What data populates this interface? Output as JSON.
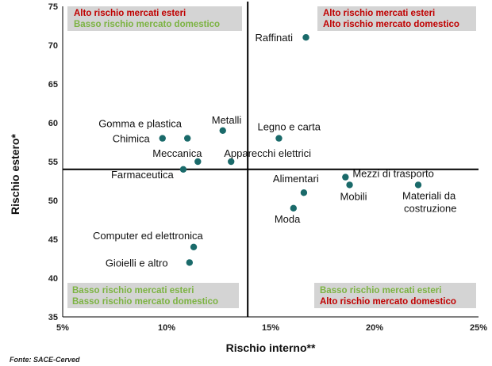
{
  "colors": {
    "point": "#1a6a6a",
    "red": "#c00000",
    "green": "#7cb342",
    "box": "#d4d4d4",
    "axis": "#000000"
  },
  "chart_data": {
    "type": "scatter",
    "xlabel": "Rischio interno**",
    "ylabel": "Rischio estero*",
    "xlim": [
      5,
      25
    ],
    "ylim": [
      35,
      75
    ],
    "xticks": [
      "5%",
      "10%",
      "15%",
      "20%",
      "25%"
    ],
    "yticks": [
      "35",
      "40",
      "45",
      "50",
      "55",
      "60",
      "65",
      "70",
      "75"
    ],
    "divider_x": 13.9,
    "divider_y": 54,
    "points": [
      {
        "label": "Raffinati",
        "x": 16.7,
        "y": 71
      },
      {
        "label": "Metalli",
        "x": 12.7,
        "y": 59
      },
      {
        "label": "Gomma e plastica",
        "x": 11.0,
        "y": 58
      },
      {
        "label": "Chimica",
        "x": 9.8,
        "y": 58
      },
      {
        "label": "Legno e carta",
        "x": 15.4,
        "y": 58
      },
      {
        "label": "Meccanica",
        "x": 11.5,
        "y": 55
      },
      {
        "label": "Apparecchi elettrici",
        "x": 13.1,
        "y": 55
      },
      {
        "label": "Farmaceutica",
        "x": 10.8,
        "y": 54
      },
      {
        "label": "Mezzi di trasporto",
        "x": 18.6,
        "y": 53
      },
      {
        "label": "Mobili",
        "x": 18.8,
        "y": 52
      },
      {
        "label": "Materiali da costruzione",
        "x": 22.1,
        "y": 52
      },
      {
        "label": "Alimentari",
        "x": 16.6,
        "y": 51
      },
      {
        "label": "Moda",
        "x": 16.1,
        "y": 49
      },
      {
        "label": "Computer ed elettronica",
        "x": 11.3,
        "y": 44
      },
      {
        "label": "Gioielli e altro",
        "x": 11.1,
        "y": 42
      }
    ],
    "quadrants": {
      "top_left": {
        "line1": "Alto rischio mercati esteri",
        "line2": "Basso rischio mercato domestico"
      },
      "top_right": {
        "line1": "Alto rischio mercati esteri",
        "line2": "Alto rischio mercato domestico"
      },
      "bottom_left": {
        "line1": "Basso rischio mercati esteri",
        "line2": "Basso rischio mercato domestico"
      },
      "bottom_right": {
        "line1": "Basso rischio mercati esteri",
        "line2": "Alto rischio mercato domestico"
      }
    }
  },
  "source": "Fonte: SACE-Cerved"
}
